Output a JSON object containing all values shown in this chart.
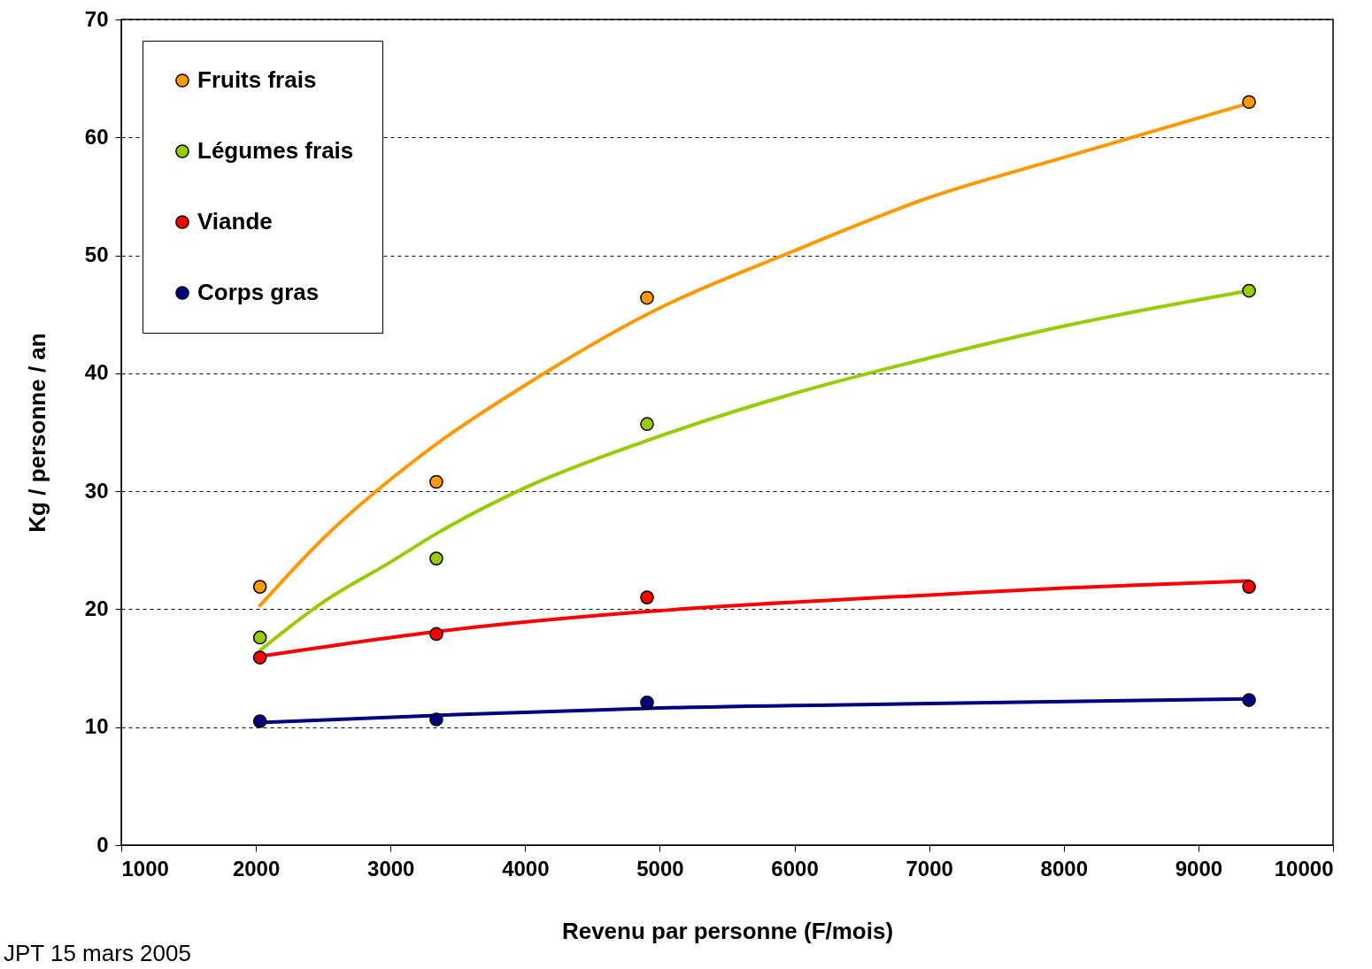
{
  "chart_data": {
    "type": "scatter",
    "xlabel": "Revenu par personne (F/mois)",
    "ylabel": "Kg / personne / an",
    "xlim": [
      1000,
      10000
    ],
    "ylim": [
      0,
      70
    ],
    "xticks": [
      1000,
      2000,
      3000,
      4000,
      5000,
      6000,
      7000,
      8000,
      9000,
      10000
    ],
    "yticks": [
      0,
      10,
      20,
      30,
      40,
      50,
      60,
      70
    ],
    "grid": "y",
    "legend": "top left",
    "annotations": [
      "JPT 15 mars 2005"
    ],
    "series": [
      {
        "type": "line",
        "marker": "none",
        "color": "#ff9900",
        "x": [
          2030,
          2500,
          3000,
          3340,
          4000,
          4905,
          6000,
          7000,
          8000,
          9376
        ],
        "values": [
          20.3,
          26,
          31,
          34,
          39,
          45,
          50.4,
          54.9,
          58.3,
          62.9
        ]
      },
      {
        "type": "line",
        "marker": "none",
        "color": "#99cc00",
        "x": [
          2030,
          2500,
          3000,
          3340,
          4000,
          4905,
          6000,
          7000,
          8000,
          9376
        ],
        "values": [
          16.5,
          20.6,
          24,
          26.4,
          30.3,
          34.3,
          38.3,
          41.3,
          44,
          47
        ]
      },
      {
        "type": "line",
        "marker": "none",
        "color": "#ff0000",
        "x": [
          2030,
          3340,
          4905,
          6000,
          7000,
          8000,
          9376
        ],
        "values": [
          16,
          18.1,
          19.8,
          20.6,
          21.2,
          21.8,
          22.4
        ]
      },
      {
        "type": "line",
        "marker": "none",
        "color": "#000080",
        "x": [
          2030,
          3340,
          4905,
          7000,
          9376
        ],
        "values": [
          10.4,
          11,
          11.6,
          12,
          12.4
        ]
      },
      {
        "name": "Fruits frais",
        "marker": "circle",
        "color": "#ff9900",
        "x": [
          2030,
          3340,
          4905,
          9376
        ],
        "values": [
          21.9,
          30.8,
          46.4,
          63
        ]
      },
      {
        "name": "Légumes frais",
        "marker": "circle",
        "color": "#99cc00",
        "x": [
          2030,
          3340,
          4905,
          9376
        ],
        "values": [
          17.6,
          24.3,
          35.7,
          47
        ]
      },
      {
        "name": "Viande",
        "marker": "circle",
        "color": "#ff0000",
        "x": [
          2030,
          3340,
          4905,
          9376
        ],
        "values": [
          15.9,
          17.9,
          21,
          21.9
        ]
      },
      {
        "name": "Corps gras",
        "marker": "circle",
        "color": "#000080",
        "x": [
          2030,
          3340,
          4905,
          9376
        ],
        "values": [
          10.5,
          10.65,
          12.1,
          12.3
        ]
      }
    ]
  }
}
